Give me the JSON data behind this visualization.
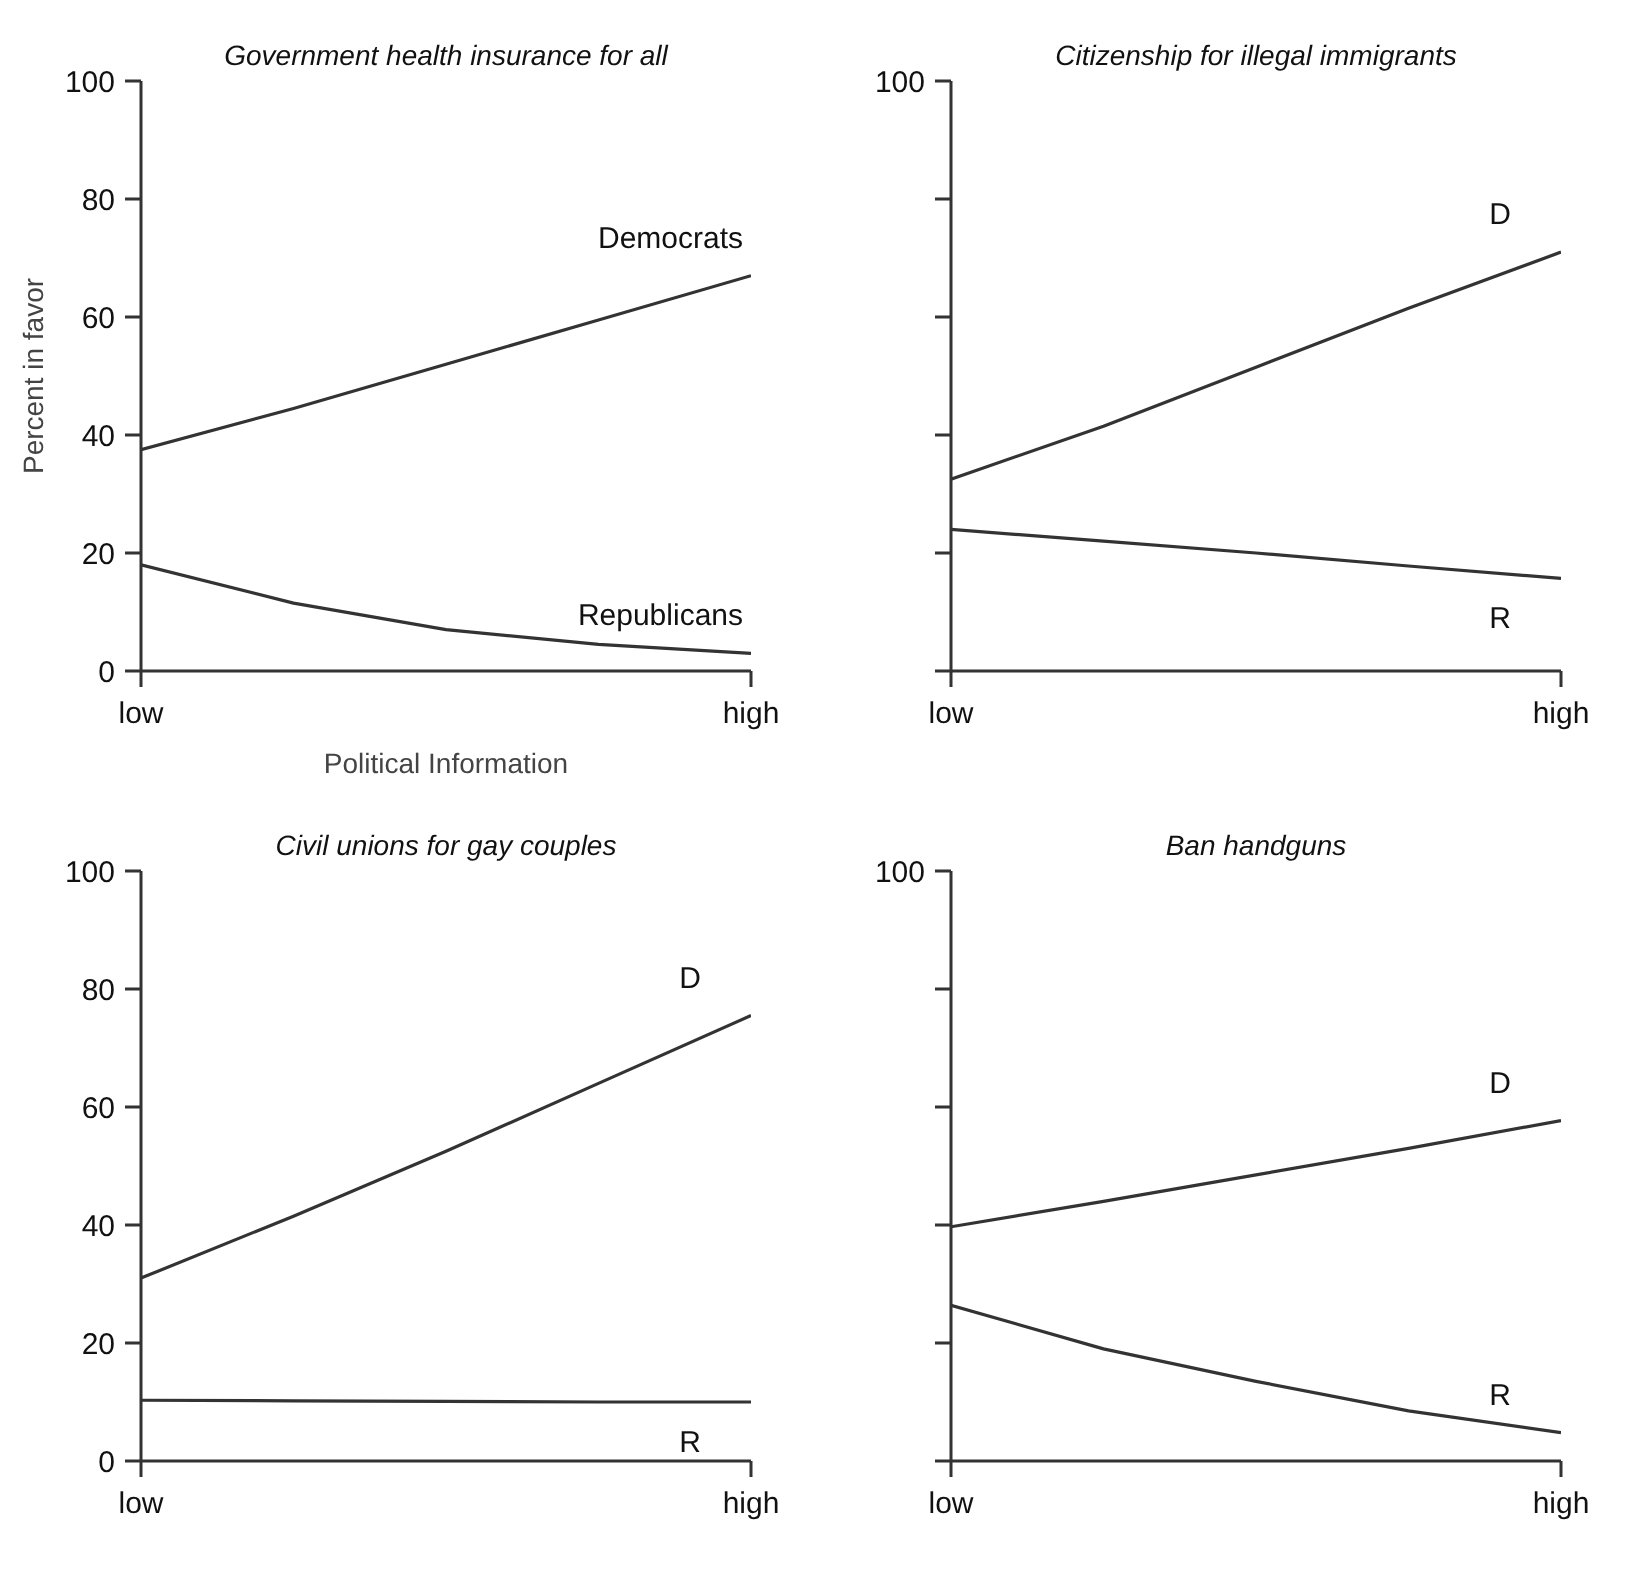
{
  "chart_data": [
    {
      "type": "line",
      "title": "Government health insurance for all",
      "xlabel": "Political Information",
      "ylabel": "Percent in favor",
      "categories": [
        "low",
        null,
        null,
        null,
        "high"
      ],
      "ylim": [
        0,
        100
      ],
      "yticks": [
        0,
        20,
        40,
        60,
        80,
        100
      ],
      "series": [
        {
          "name": "Democrats",
          "color": "#333333",
          "values": [
            37.5,
            44.5,
            52,
            59.5,
            67
          ]
        },
        {
          "name": "Republicans",
          "color": "#333333",
          "values": [
            18,
            11.5,
            7,
            4.5,
            3
          ]
        }
      ]
    },
    {
      "type": "line",
      "title": "Citizenship for illegal immigrants",
      "categories": [
        "low",
        null,
        null,
        null,
        "high"
      ],
      "ylim": [
        0,
        100
      ],
      "yticks": [
        0,
        20,
        40,
        60,
        80,
        100
      ],
      "tick_labels": "x",
      "annotations": [
        "100"
      ],
      "series": [
        {
          "name": "D",
          "color": "#333333",
          "values": [
            32.5,
            41.5,
            51.5,
            61.5,
            71
          ]
        },
        {
          "name": "R",
          "color": "#333333",
          "values": [
            24,
            22,
            20,
            17.8,
            15.7
          ]
        }
      ]
    },
    {
      "type": "line",
      "title": "Civil unions for gay couples",
      "categories": [
        "low",
        null,
        null,
        null,
        "high"
      ],
      "ylim": [
        0,
        100
      ],
      "yticks": [
        0,
        20,
        40,
        60,
        80,
        100
      ],
      "series": [
        {
          "name": "D",
          "color": "#333333",
          "values": [
            31,
            41.5,
            52.5,
            64,
            75.5
          ]
        },
        {
          "name": "R",
          "color": "#333333",
          "values": [
            10.3,
            10.2,
            10.1,
            10,
            10
          ]
        }
      ]
    },
    {
      "type": "line",
      "title": "Ban handguns",
      "categories": [
        "low",
        null,
        null,
        null,
        "high"
      ],
      "ylim": [
        0,
        100
      ],
      "yticks": [
        0,
        20,
        40,
        60,
        80,
        100
      ],
      "tick_labels": "x",
      "annotations": [
        "100"
      ],
      "series": [
        {
          "name": "D",
          "color": "#333333",
          "values": [
            39.7,
            44,
            48.5,
            53,
            57.7
          ]
        },
        {
          "name": "R",
          "color": "#333333",
          "values": [
            26.4,
            19,
            13.5,
            8.5,
            4.8
          ]
        }
      ]
    }
  ]
}
